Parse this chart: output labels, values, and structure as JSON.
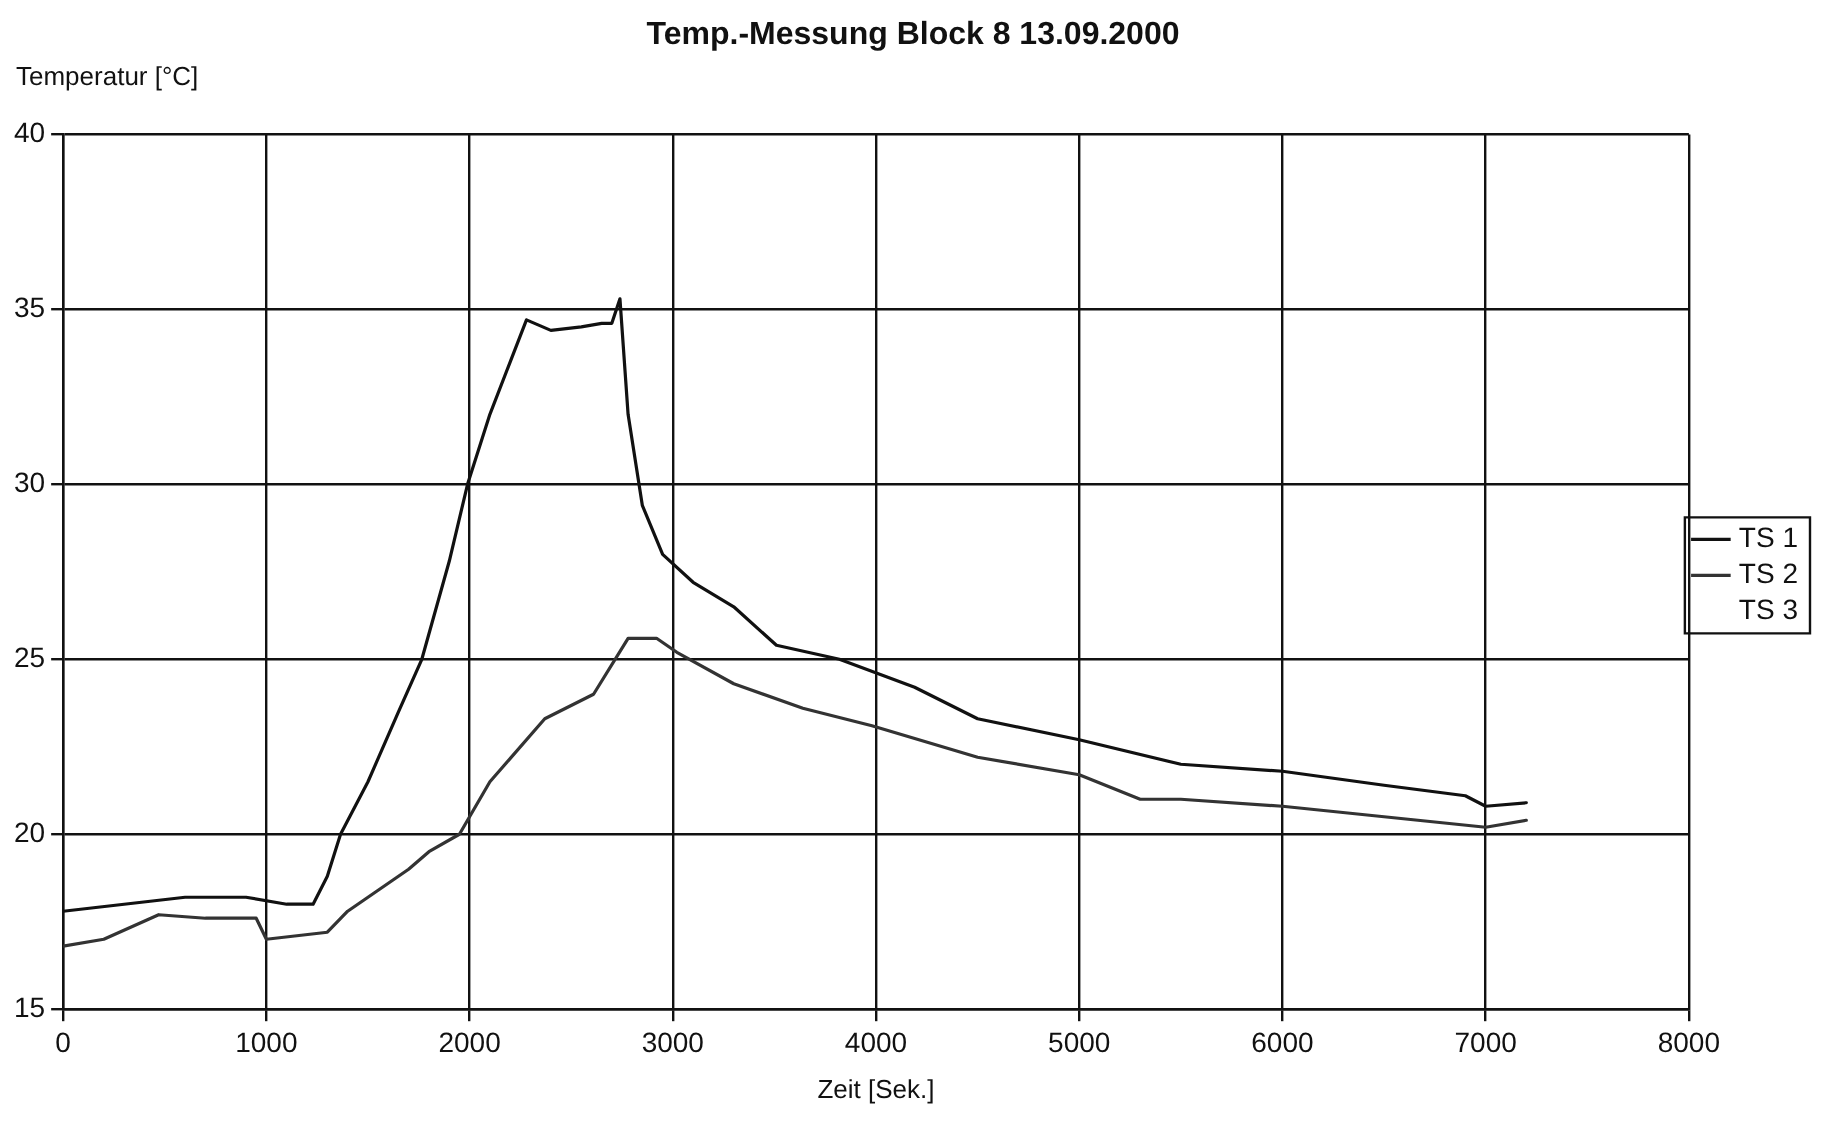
{
  "chart_data": {
    "type": "line",
    "title": "Temp.-Messung Block 8 13.09.2000",
    "xlabel": "Zeit [Sek.]",
    "ylabel": "Temperatur [°C]",
    "xlim": [
      0,
      8000
    ],
    "xticks": [
      0,
      1000,
      2000,
      3000,
      4000,
      5000,
      6000,
      7000,
      8000
    ],
    "ylim": [
      15,
      40
    ],
    "yticks": [
      15,
      20,
      25,
      30,
      35,
      40
    ],
    "grid": true,
    "legend": "right",
    "marker": "none",
    "line_style": "solid",
    "series": [
      {
        "name": "TS 1",
        "color": "#111111",
        "x": [
          0,
          300,
          600,
          900,
          1100,
          1230,
          1300,
          1365,
          1500,
          1650,
          1765,
          1900,
          1990,
          2100,
          2200,
          2280,
          2400,
          2550,
          2650,
          2700,
          2740,
          2780,
          2850,
          2950,
          3100,
          3300,
          3510,
          3820,
          4190,
          4500,
          5000,
          5500,
          6000,
          6500,
          6900,
          7000,
          7200
        ],
        "values": [
          17.8,
          18.0,
          18.2,
          18.2,
          18.0,
          18.0,
          18.8,
          20.0,
          21.5,
          23.5,
          25.0,
          27.8,
          30.0,
          32.0,
          33.5,
          34.7,
          34.4,
          34.5,
          34.6,
          34.6,
          35.3,
          32.0,
          29.4,
          28.0,
          27.2,
          26.5,
          25.4,
          25.0,
          24.2,
          23.3,
          22.7,
          22.0,
          21.8,
          21.4,
          21.1,
          20.8,
          20.9
        ]
      },
      {
        "name": "TS 2",
        "color": "#333333",
        "x": [
          0,
          200,
          470,
          700,
          950,
          1000,
          1300,
          1400,
          1550,
          1700,
          1800,
          1950,
          2100,
          2370,
          2610,
          2780,
          2920,
          3020,
          3300,
          3640,
          3980,
          4500,
          5000,
          5300,
          5500,
          6000,
          6500,
          7000,
          7200
        ],
        "values": [
          16.8,
          17.0,
          17.7,
          17.6,
          17.6,
          17.0,
          17.2,
          17.8,
          18.4,
          19.0,
          19.5,
          20.0,
          21.5,
          23.3,
          24.0,
          25.6,
          25.6,
          25.2,
          24.3,
          23.6,
          23.1,
          22.2,
          21.7,
          21.0,
          21.0,
          20.8,
          20.5,
          20.2,
          20.4
        ]
      },
      {
        "name": "TS 3"
      }
    ]
  }
}
